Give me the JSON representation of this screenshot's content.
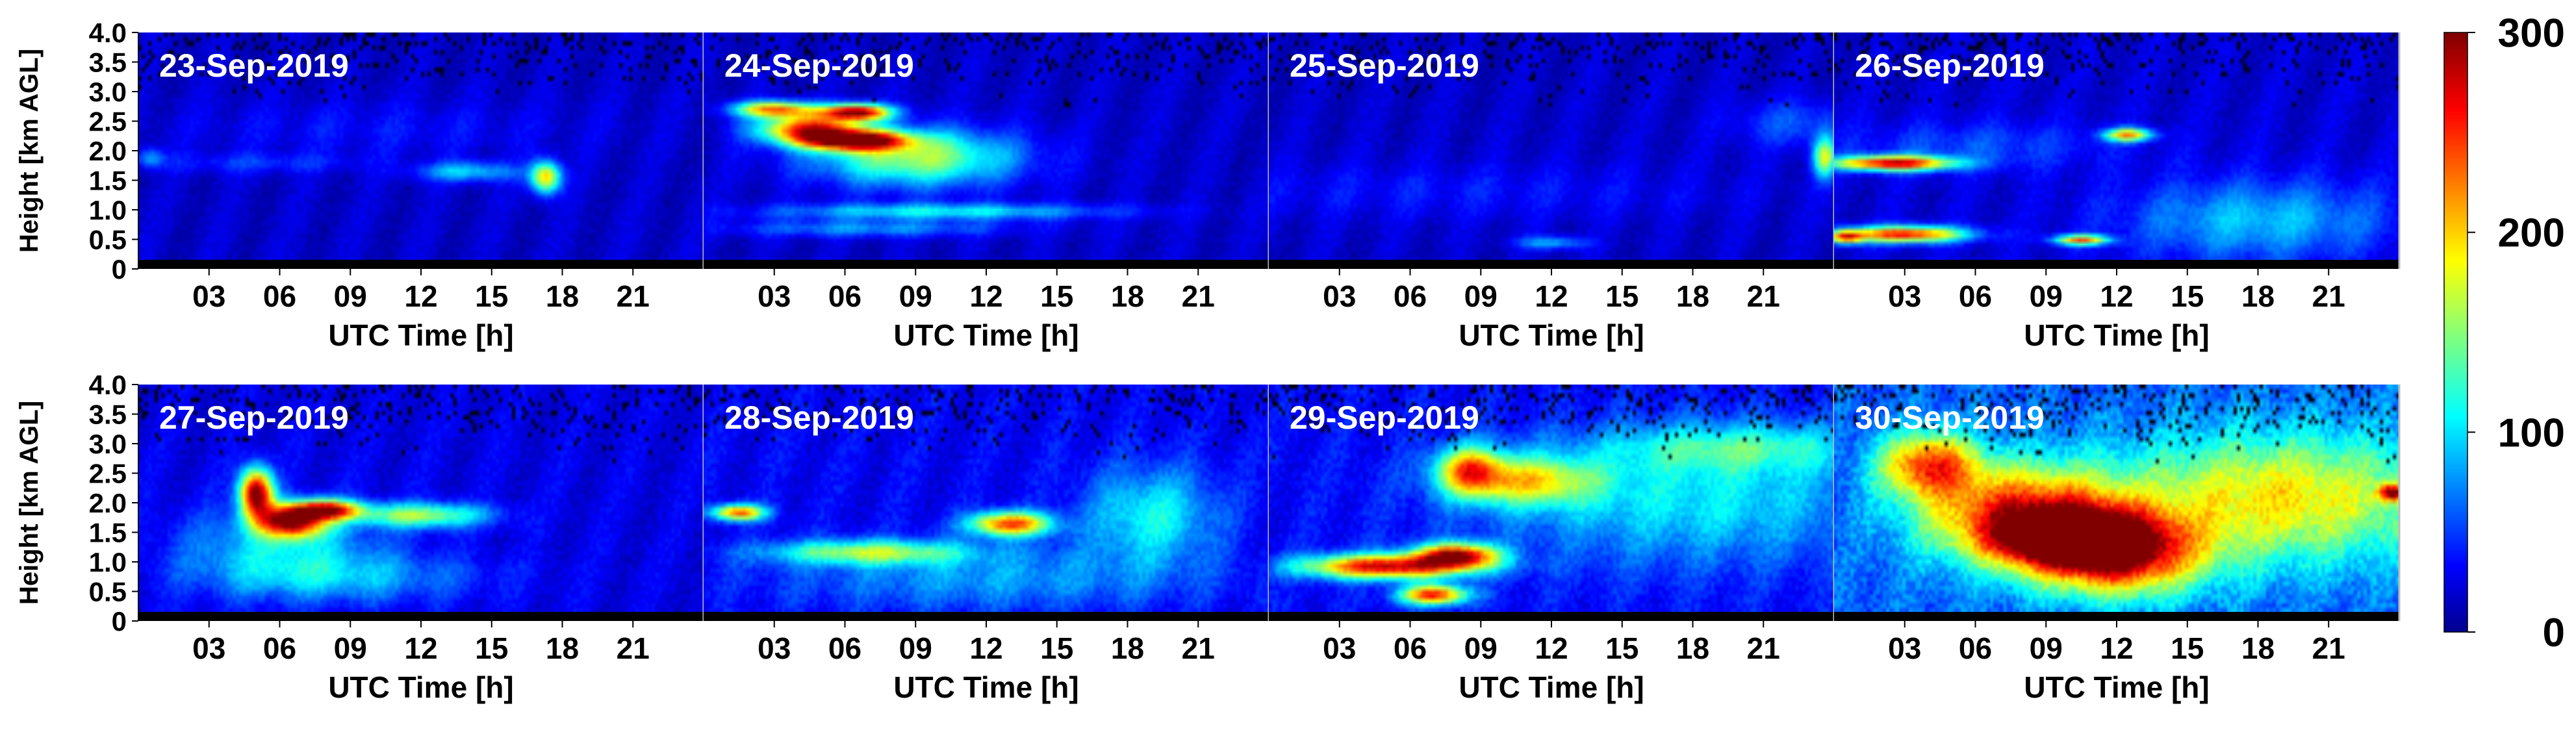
{
  "chart_data": {
    "type": "heatmap",
    "ylabel": "Height [km AGL]",
    "xlabel": "UTC Time [h]",
    "y_ticks": [
      "0",
      "0.5",
      "1.0",
      "1.5",
      "2.0",
      "2.5",
      "3.0",
      "3.5",
      "4.0"
    ],
    "x_ticks": [
      "03",
      "06",
      "09",
      "12",
      "15",
      "18",
      "21"
    ],
    "ylim": [
      0,
      4.0
    ],
    "xlim_hours": [
      0,
      24
    ],
    "colorbar": {
      "ticks": [
        "0",
        "100",
        "200",
        "300"
      ],
      "range": [
        0,
        300
      ],
      "colormap": "jet"
    },
    "panels": [
      {
        "date": "23-Sep-2019",
        "background": 22,
        "features": [
          {
            "t": 0.5,
            "h": 1.8,
            "st": 0.4,
            "sh": 0.12,
            "v": 60
          },
          {
            "t": 10,
            "h": 2.3,
            "st": 6,
            "sh": 0.35,
            "v": 18
          },
          {
            "t": 14,
            "h": 1.55,
            "st": 1.5,
            "sh": 0.12,
            "v": 80
          },
          {
            "t": 17.3,
            "h": 1.45,
            "st": 0.45,
            "sh": 0.2,
            "v": 180
          },
          {
            "t": 5,
            "h": 1.7,
            "st": 3,
            "sh": 0.12,
            "v": 30
          }
        ]
      },
      {
        "date": "24-Sep-2019",
        "background": 22,
        "features": [
          {
            "t": 4.5,
            "h": 2.3,
            "st": 1.5,
            "sh": 0.18,
            "v": 230
          },
          {
            "t": 6.5,
            "h": 2.1,
            "st": 1.5,
            "sh": 0.12,
            "v": 260
          },
          {
            "t": 6.5,
            "h": 2.6,
            "st": 1,
            "sh": 0.1,
            "v": 270
          },
          {
            "t": 3,
            "h": 2.65,
            "st": 1.2,
            "sh": 0.1,
            "v": 200
          },
          {
            "t": 9,
            "h": 1.8,
            "st": 3,
            "sh": 0.35,
            "v": 140
          },
          {
            "t": 10,
            "h": 0.85,
            "st": 5,
            "sh": 0.1,
            "v": 90
          },
          {
            "t": 7,
            "h": 0.55,
            "st": 4,
            "sh": 0.1,
            "v": 60
          }
        ]
      },
      {
        "date": "25-Sep-2019",
        "background": 22,
        "features": [
          {
            "t": 8,
            "h": 1.2,
            "st": 8,
            "sh": 0.35,
            "v": 20
          },
          {
            "t": 12,
            "h": 0.3,
            "st": 1,
            "sh": 0.08,
            "v": 70
          },
          {
            "t": 23.6,
            "h": 1.8,
            "st": 0.35,
            "sh": 0.25,
            "v": 150
          },
          {
            "t": 22.5,
            "h": 2.4,
            "st": 2,
            "sh": 0.3,
            "v": 40
          }
        ]
      },
      {
        "date": "26-Sep-2019",
        "background": 25,
        "features": [
          {
            "t": 2.5,
            "h": 1.7,
            "st": 1.8,
            "sh": 0.09,
            "v": 250
          },
          {
            "t": 3,
            "h": 0.45,
            "st": 1.8,
            "sh": 0.1,
            "v": 240
          },
          {
            "t": 0.5,
            "h": 0.4,
            "st": 0.5,
            "sh": 0.08,
            "v": 180
          },
          {
            "t": 12.5,
            "h": 2.2,
            "st": 0.7,
            "sh": 0.08,
            "v": 190
          },
          {
            "t": 10.5,
            "h": 0.35,
            "st": 0.8,
            "sh": 0.06,
            "v": 200
          },
          {
            "t": 18,
            "h": 0.7,
            "st": 4,
            "sh": 0.5,
            "v": 70
          },
          {
            "t": 6,
            "h": 2.0,
            "st": 4,
            "sh": 0.3,
            "v": 35
          }
        ]
      },
      {
        "date": "27-Sep-2019",
        "background": 30,
        "features": [
          {
            "t": 5,
            "h": 2.1,
            "st": 0.5,
            "sh": 0.3,
            "v": 270
          },
          {
            "t": 6.5,
            "h": 1.6,
            "st": 1,
            "sh": 0.2,
            "v": 250
          },
          {
            "t": 8,
            "h": 1.8,
            "st": 1,
            "sh": 0.12,
            "v": 220
          },
          {
            "t": 12,
            "h": 1.7,
            "st": 2,
            "sh": 0.15,
            "v": 130
          },
          {
            "t": 6,
            "h": 1.1,
            "st": 3,
            "sh": 0.5,
            "v": 70
          },
          {
            "t": 9,
            "h": 0.6,
            "st": 4,
            "sh": 0.3,
            "v": 50
          }
        ]
      },
      {
        "date": "28-Sep-2019",
        "background": 35,
        "features": [
          {
            "t": 1.5,
            "h": 1.75,
            "st": 0.8,
            "sh": 0.1,
            "v": 200
          },
          {
            "t": 7,
            "h": 1.05,
            "st": 3,
            "sh": 0.15,
            "v": 120
          },
          {
            "t": 13,
            "h": 1.55,
            "st": 1.2,
            "sh": 0.15,
            "v": 210
          },
          {
            "t": 19,
            "h": 1.7,
            "st": 2,
            "sh": 0.6,
            "v": 80
          },
          {
            "t": 12,
            "h": 0.6,
            "st": 6,
            "sh": 0.4,
            "v": 50
          }
        ]
      },
      {
        "date": "29-Sep-2019",
        "background": 38,
        "features": [
          {
            "t": 5,
            "h": 0.8,
            "st": 2.5,
            "sh": 0.15,
            "v": 240
          },
          {
            "t": 8,
            "h": 1.0,
            "st": 1.2,
            "sh": 0.15,
            "v": 230
          },
          {
            "t": 7,
            "h": 0.3,
            "st": 1,
            "sh": 0.12,
            "v": 220
          },
          {
            "t": 11,
            "h": 2.3,
            "st": 2,
            "sh": 0.3,
            "v": 130
          },
          {
            "t": 8.5,
            "h": 2.5,
            "st": 1,
            "sh": 0.3,
            "v": 160
          },
          {
            "t": 18,
            "h": 2.0,
            "st": 6,
            "sh": 0.8,
            "v": 70
          },
          {
            "t": 20,
            "h": 2.9,
            "st": 4,
            "sh": 0.3,
            "v": 70
          }
        ]
      },
      {
        "date": "30-Sep-2019",
        "background": 65,
        "features": [
          {
            "t": 4,
            "h": 2.6,
            "st": 1.5,
            "sh": 0.4,
            "v": 170
          },
          {
            "t": 8,
            "h": 1.7,
            "st": 3,
            "sh": 0.6,
            "v": 190
          },
          {
            "t": 12,
            "h": 1.0,
            "st": 2.5,
            "sh": 0.5,
            "v": 200
          },
          {
            "t": 10,
            "h": 1.3,
            "st": 2,
            "sh": 0.3,
            "v": 200
          },
          {
            "t": 19,
            "h": 2.0,
            "st": 5,
            "sh": 0.8,
            "v": 130
          },
          {
            "t": 23.7,
            "h": 2.1,
            "st": 0.4,
            "sh": 0.1,
            "v": 190
          }
        ]
      }
    ]
  }
}
